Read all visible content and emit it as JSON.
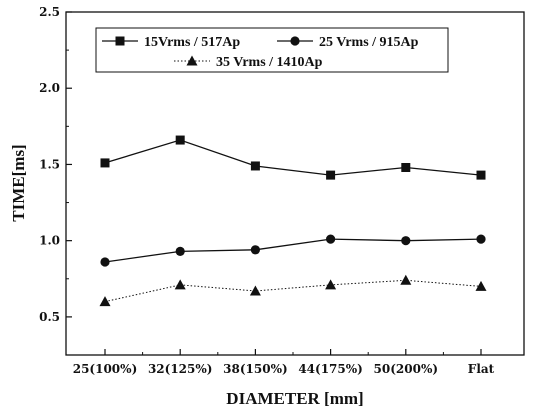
{
  "chart_data": {
    "type": "line",
    "categories": [
      "25(100%)",
      "32(125%)",
      "38(150%)",
      "44(175%)",
      "50(200%)",
      "Flat"
    ],
    "xlabel": "DIAMETER [mm]",
    "ylabel": "TIME[ms]",
    "ylim": [
      0.25,
      2.5
    ],
    "yticks": [
      "0.5",
      "1.0",
      "1.5",
      "2.0",
      "2.5"
    ],
    "grid": false,
    "legend_position": "top-left",
    "series": [
      {
        "name": "15Vrms / 517Ap",
        "marker": "square",
        "line": "solid",
        "color": "#111111",
        "values": [
          1.51,
          1.66,
          1.49,
          1.43,
          1.48,
          1.43
        ]
      },
      {
        "name": "25 Vrms / 915Ap",
        "marker": "circle",
        "line": "solid",
        "color": "#111111",
        "values": [
          0.86,
          0.93,
          0.94,
          1.01,
          1.0,
          1.01
        ]
      },
      {
        "name": "35 Vrms / 1410Ap",
        "marker": "triangle",
        "line": "dotted",
        "color": "#111111",
        "values": [
          0.6,
          0.71,
          0.67,
          0.71,
          0.74,
          0.7
        ]
      }
    ]
  }
}
